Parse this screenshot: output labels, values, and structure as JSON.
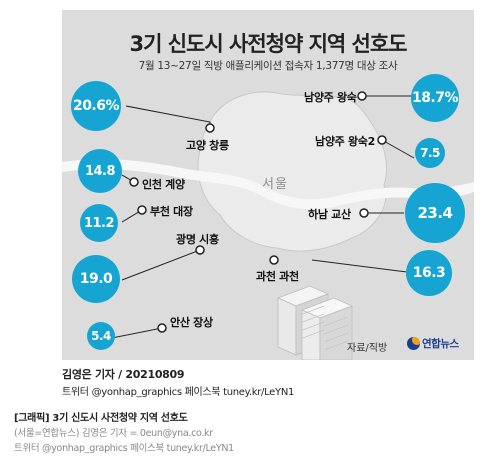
{
  "chart_data": {
    "type": "bubble-map",
    "title": "3기 신도시 사전청약 지역 선호도",
    "subtitle": "7월 13~27일 직방 애플리케이션 접속자 1,377명 대상 조사",
    "map_label": "서울",
    "source": "자료/직방",
    "agency": "연합뉴스",
    "unit": "%",
    "points": [
      {
        "label": "고양 창릉",
        "value": "20.6%",
        "num": 20.6
      },
      {
        "label": "남양주 왕숙",
        "value": "18.7%",
        "num": 18.7
      },
      {
        "label": "인천 계양",
        "value": "14.8",
        "num": 14.8
      },
      {
        "label": "남양주 왕숙2",
        "value": "7.5",
        "num": 7.5
      },
      {
        "label": "부천 대장",
        "value": "11.2",
        "num": 11.2
      },
      {
        "label": "하남 교산",
        "value": "23.4",
        "num": 23.4
      },
      {
        "label": "광명 시흥",
        "value": "19.0",
        "num": 19.0
      },
      {
        "label": "과천 과천",
        "value": "16.3",
        "num": 16.3
      },
      {
        "label": "안산 장상",
        "value": "5.4",
        "num": 5.4
      }
    ],
    "colors": {
      "bubble": "#16a4d3",
      "background": "#dcdcdc",
      "land": "#e8e8e8",
      "river": "#f8f8f8"
    }
  },
  "credit": {
    "author": "김영은 기자 / 20210809",
    "twitter": "트위터 @yonhap_graphics  페이스북 tuney.kr/LeYN1"
  },
  "caption": {
    "title": "[그래픽] 3기 신도시 사전청약 지역 선호도",
    "byline": "(서울=연합뉴스) 김영은 기자 = 0eun@yna.co.kr",
    "social": "트위터 @yonhap_graphics  페이스북 tuney.kr/LeYN1"
  }
}
